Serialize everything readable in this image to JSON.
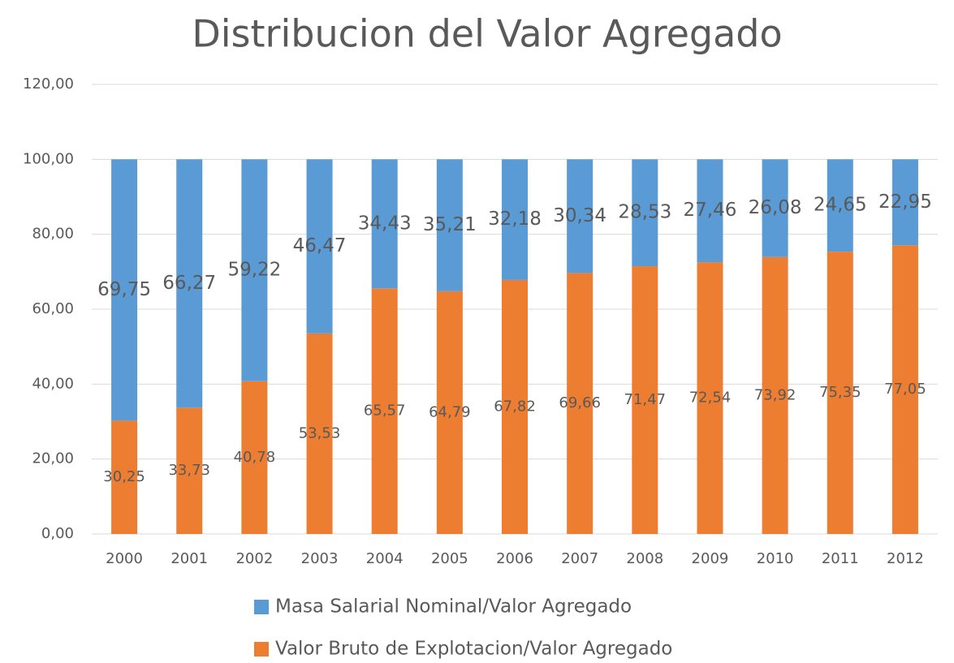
{
  "chart_data": {
    "type": "stacked_bar",
    "title": "Distribucion del Valor Agregado",
    "categories": [
      "2000",
      "2001",
      "2002",
      "2003",
      "2004",
      "2005",
      "2006",
      "2007",
      "2008",
      "2009",
      "2010",
      "2011",
      "2012"
    ],
    "series": [
      {
        "name": "Masa Salarial Nominal/Valor Agregado",
        "color": "#5b9bd5",
        "values": [
          69.75,
          66.27,
          59.22,
          46.47,
          34.43,
          35.21,
          32.18,
          30.34,
          28.53,
          27.46,
          26.08,
          24.65,
          22.95
        ],
        "value_labels": [
          "69,75",
          "66,27",
          "59,22",
          "46,47",
          "34,43",
          "35,21",
          "32,18",
          "30,34",
          "28,53",
          "27,46",
          "26,08",
          "24,65",
          "22,95"
        ]
      },
      {
        "name": "Valor Bruto de Explotacion/Valor Agregado",
        "color": "#ed7d31",
        "values": [
          30.25,
          33.73,
          40.78,
          53.53,
          65.57,
          64.79,
          67.82,
          69.66,
          71.47,
          72.54,
          73.92,
          75.35,
          77.05
        ],
        "value_labels": [
          "30,25",
          "33,73",
          "40,78",
          "53,53",
          "65,57",
          "64,79",
          "67,82",
          "69,66",
          "71,47",
          "72,54",
          "73,92",
          "75,35",
          "77,05"
        ]
      }
    ],
    "ylim": [
      0,
      120
    ],
    "yticks": [
      {
        "value": 0,
        "label": "0,00"
      },
      {
        "value": 20,
        "label": "20,00"
      },
      {
        "value": 40,
        "label": "40,00"
      },
      {
        "value": 60,
        "label": "60,00"
      },
      {
        "value": 80,
        "label": "80,00"
      },
      {
        "value": 100,
        "label": "100,00"
      },
      {
        "value": 120,
        "label": "120,00"
      }
    ],
    "grid": true,
    "legend": "bottom"
  }
}
